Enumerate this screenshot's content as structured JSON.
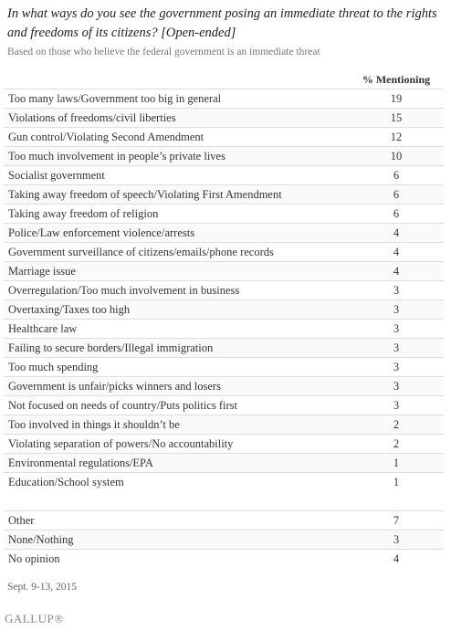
{
  "header": {
    "title": "In what ways do you see the government posing an immediate threat to the rights and freedoms of its citizens? [Open-ended]",
    "subtitle": "Based on those who believe the federal government is an immediate threat"
  },
  "table": {
    "column_header": "% Mentioning",
    "rows": [
      [
        "Too many laws/Government too big in general",
        19
      ],
      [
        "Violations of freedoms/civil liberties",
        15
      ],
      [
        "Gun control/Violating Second Amendment",
        12
      ],
      [
        "Too much involvement in people’s private lives",
        10
      ],
      [
        "Socialist government",
        6
      ],
      [
        "Taking away freedom of speech/Violating First Amendment",
        6
      ],
      [
        "Taking away freedom of religion",
        6
      ],
      [
        "Police/Law enforcement violence/arrests",
        4
      ],
      [
        "Government surveillance of citizens/emails/phone records",
        4
      ],
      [
        "Marriage issue",
        4
      ],
      [
        "Overregulation/Too much involvement in business",
        3
      ],
      [
        "Overtaxing/Taxes too high",
        3
      ],
      [
        "Healthcare law",
        3
      ],
      [
        "Failing to secure borders/Illegal immigration",
        3
      ],
      [
        "Too much spending",
        3
      ],
      [
        "Government is unfair/picks winners and losers",
        3
      ],
      [
        "Not focused on needs of country/Puts politics first",
        3
      ],
      [
        "Too involved in things it shouldn’t be",
        2
      ],
      [
        "Violating separation of powers/No accountability",
        2
      ],
      [
        "Environmental regulations/EPA",
        1
      ],
      [
        "Education/School system",
        1
      ]
    ],
    "other_rows": [
      [
        "Other",
        7
      ],
      [
        "None/Nothing",
        3
      ],
      [
        "No opinion",
        4
      ]
    ]
  },
  "footer": {
    "note": "Sept. 9-13, 2015",
    "source": "GALLUP®"
  }
}
